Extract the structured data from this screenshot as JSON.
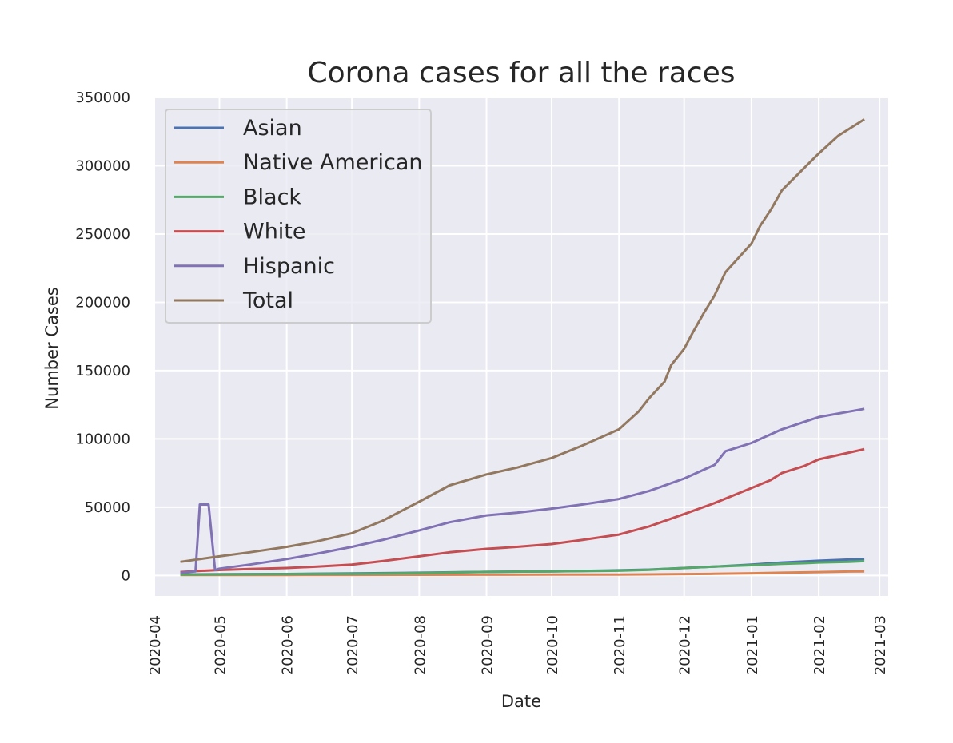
{
  "chart_data": {
    "type": "line",
    "title": "Corona cases for all the races",
    "xlabel": "Date",
    "ylabel": "Number Cases",
    "x_ticks": [
      "2020-04",
      "2020-05",
      "2020-06",
      "2020-07",
      "2020-08",
      "2020-09",
      "2020-10",
      "2020-11",
      "2020-12",
      "2021-01",
      "2021-02",
      "2021-03"
    ],
    "y_ticks": [
      "0",
      "50000",
      "100000",
      "150000",
      "200000",
      "250000",
      "300000",
      "350000"
    ],
    "xlim": [
      "2020-04-01",
      "2021-03-05"
    ],
    "ylim": [
      -15000,
      350000
    ],
    "grid": true,
    "legend_position": "upper-left",
    "series": [
      {
        "name": "Asian",
        "color": "#4c72b0",
        "points": [
          [
            "2020-04-13",
            800
          ],
          [
            "2020-05-01",
            900
          ],
          [
            "2020-06-01",
            1100
          ],
          [
            "2020-07-01",
            1500
          ],
          [
            "2020-08-01",
            2000
          ],
          [
            "2020-09-01",
            2600
          ],
          [
            "2020-10-01",
            3000
          ],
          [
            "2020-11-01",
            3800
          ],
          [
            "2020-11-15",
            4300
          ],
          [
            "2020-12-01",
            5500
          ],
          [
            "2020-12-15",
            6500
          ],
          [
            "2021-01-01",
            8000
          ],
          [
            "2021-01-15",
            9500
          ],
          [
            "2021-02-01",
            10800
          ],
          [
            "2021-02-15",
            11700
          ],
          [
            "2021-02-22",
            12000
          ]
        ]
      },
      {
        "name": "Native American",
        "color": "#dd8452",
        "points": [
          [
            "2020-04-13",
            300
          ],
          [
            "2020-05-01",
            350
          ],
          [
            "2020-06-01",
            400
          ],
          [
            "2020-07-01",
            450
          ],
          [
            "2020-08-01",
            500
          ],
          [
            "2020-09-01",
            550
          ],
          [
            "2020-10-01",
            600
          ],
          [
            "2020-11-01",
            700
          ],
          [
            "2020-11-15",
            800
          ],
          [
            "2020-12-01",
            1000
          ],
          [
            "2020-12-15",
            1200
          ],
          [
            "2021-01-01",
            1600
          ],
          [
            "2021-01-15",
            2000
          ],
          [
            "2021-02-01",
            2500
          ],
          [
            "2021-02-15",
            2900
          ],
          [
            "2021-02-22",
            3000
          ]
        ]
      },
      {
        "name": "Black",
        "color": "#55a868",
        "points": [
          [
            "2020-04-13",
            600
          ],
          [
            "2020-05-01",
            800
          ],
          [
            "2020-06-01",
            1000
          ],
          [
            "2020-07-01",
            1200
          ],
          [
            "2020-08-01",
            1800
          ],
          [
            "2020-09-01",
            2600
          ],
          [
            "2020-10-01",
            3000
          ],
          [
            "2020-11-01",
            3500
          ],
          [
            "2020-11-15",
            4200
          ],
          [
            "2020-12-01",
            5500
          ],
          [
            "2020-12-15",
            6500
          ],
          [
            "2021-01-01",
            7500
          ],
          [
            "2021-01-15",
            8500
          ],
          [
            "2021-01-25",
            9000
          ],
          [
            "2021-02-01",
            9500
          ],
          [
            "2021-02-15",
            10000
          ],
          [
            "2021-02-22",
            10500
          ]
        ]
      },
      {
        "name": "White",
        "color": "#c44e52",
        "points": [
          [
            "2020-04-13",
            2500
          ],
          [
            "2020-04-20",
            3200
          ],
          [
            "2020-05-01",
            4000
          ],
          [
            "2020-05-15",
            4800
          ],
          [
            "2020-06-01",
            5500
          ],
          [
            "2020-06-15",
            6500
          ],
          [
            "2020-07-01",
            8000
          ],
          [
            "2020-07-15",
            10500
          ],
          [
            "2020-08-01",
            14000
          ],
          [
            "2020-08-15",
            17000
          ],
          [
            "2020-09-01",
            19500
          ],
          [
            "2020-09-15",
            21000
          ],
          [
            "2020-10-01",
            23000
          ],
          [
            "2020-10-15",
            26000
          ],
          [
            "2020-11-01",
            30000
          ],
          [
            "2020-11-15",
            36000
          ],
          [
            "2020-12-01",
            45000
          ],
          [
            "2020-12-15",
            53000
          ],
          [
            "2021-01-01",
            64000
          ],
          [
            "2021-01-10",
            70000
          ],
          [
            "2021-01-15",
            75000
          ],
          [
            "2021-01-25",
            80000
          ],
          [
            "2021-02-01",
            85000
          ],
          [
            "2021-02-15",
            90000
          ],
          [
            "2021-02-22",
            92500
          ]
        ]
      },
      {
        "name": "Hispanic",
        "color": "#8172b3",
        "points": [
          [
            "2020-04-13",
            2000
          ],
          [
            "2020-04-20",
            3000
          ],
          [
            "2020-04-22",
            52000
          ],
          [
            "2020-04-26",
            52000
          ],
          [
            "2020-04-29",
            4000
          ],
          [
            "2020-05-01",
            5000
          ],
          [
            "2020-05-15",
            8000
          ],
          [
            "2020-06-01",
            12000
          ],
          [
            "2020-06-15",
            16000
          ],
          [
            "2020-07-01",
            21000
          ],
          [
            "2020-07-15",
            26000
          ],
          [
            "2020-08-01",
            33000
          ],
          [
            "2020-08-15",
            39000
          ],
          [
            "2020-09-01",
            44000
          ],
          [
            "2020-09-15",
            46000
          ],
          [
            "2020-10-01",
            49000
          ],
          [
            "2020-10-15",
            52000
          ],
          [
            "2020-11-01",
            56000
          ],
          [
            "2020-11-15",
            62000
          ],
          [
            "2020-12-01",
            71000
          ],
          [
            "2020-12-15",
            81000
          ],
          [
            "2020-12-20",
            91000
          ],
          [
            "2021-01-01",
            97000
          ],
          [
            "2021-01-15",
            107000
          ],
          [
            "2021-02-01",
            116000
          ],
          [
            "2021-02-15",
            120000
          ],
          [
            "2021-02-22",
            122000
          ]
        ]
      },
      {
        "name": "Total",
        "color": "#937860",
        "points": [
          [
            "2020-04-13",
            10000
          ],
          [
            "2020-05-01",
            14000
          ],
          [
            "2020-05-15",
            17000
          ],
          [
            "2020-06-01",
            21000
          ],
          [
            "2020-06-15",
            25000
          ],
          [
            "2020-07-01",
            31000
          ],
          [
            "2020-07-15",
            40000
          ],
          [
            "2020-08-01",
            54000
          ],
          [
            "2020-08-15",
            66000
          ],
          [
            "2020-09-01",
            74000
          ],
          [
            "2020-09-15",
            79000
          ],
          [
            "2020-10-01",
            86000
          ],
          [
            "2020-10-15",
            95000
          ],
          [
            "2020-11-01",
            107000
          ],
          [
            "2020-11-10",
            120000
          ],
          [
            "2020-11-15",
            130000
          ],
          [
            "2020-11-22",
            142000
          ],
          [
            "2020-11-25",
            154000
          ],
          [
            "2020-12-01",
            166000
          ],
          [
            "2020-12-05",
            178000
          ],
          [
            "2020-12-10",
            192000
          ],
          [
            "2020-12-15",
            205000
          ],
          [
            "2020-12-20",
            222000
          ],
          [
            "2021-01-01",
            243000
          ],
          [
            "2021-01-05",
            256000
          ],
          [
            "2021-01-10",
            268000
          ],
          [
            "2021-01-15",
            282000
          ],
          [
            "2021-01-20",
            290000
          ],
          [
            "2021-02-01",
            309000
          ],
          [
            "2021-02-10",
            322000
          ],
          [
            "2021-02-22",
            334000
          ]
        ]
      }
    ]
  }
}
